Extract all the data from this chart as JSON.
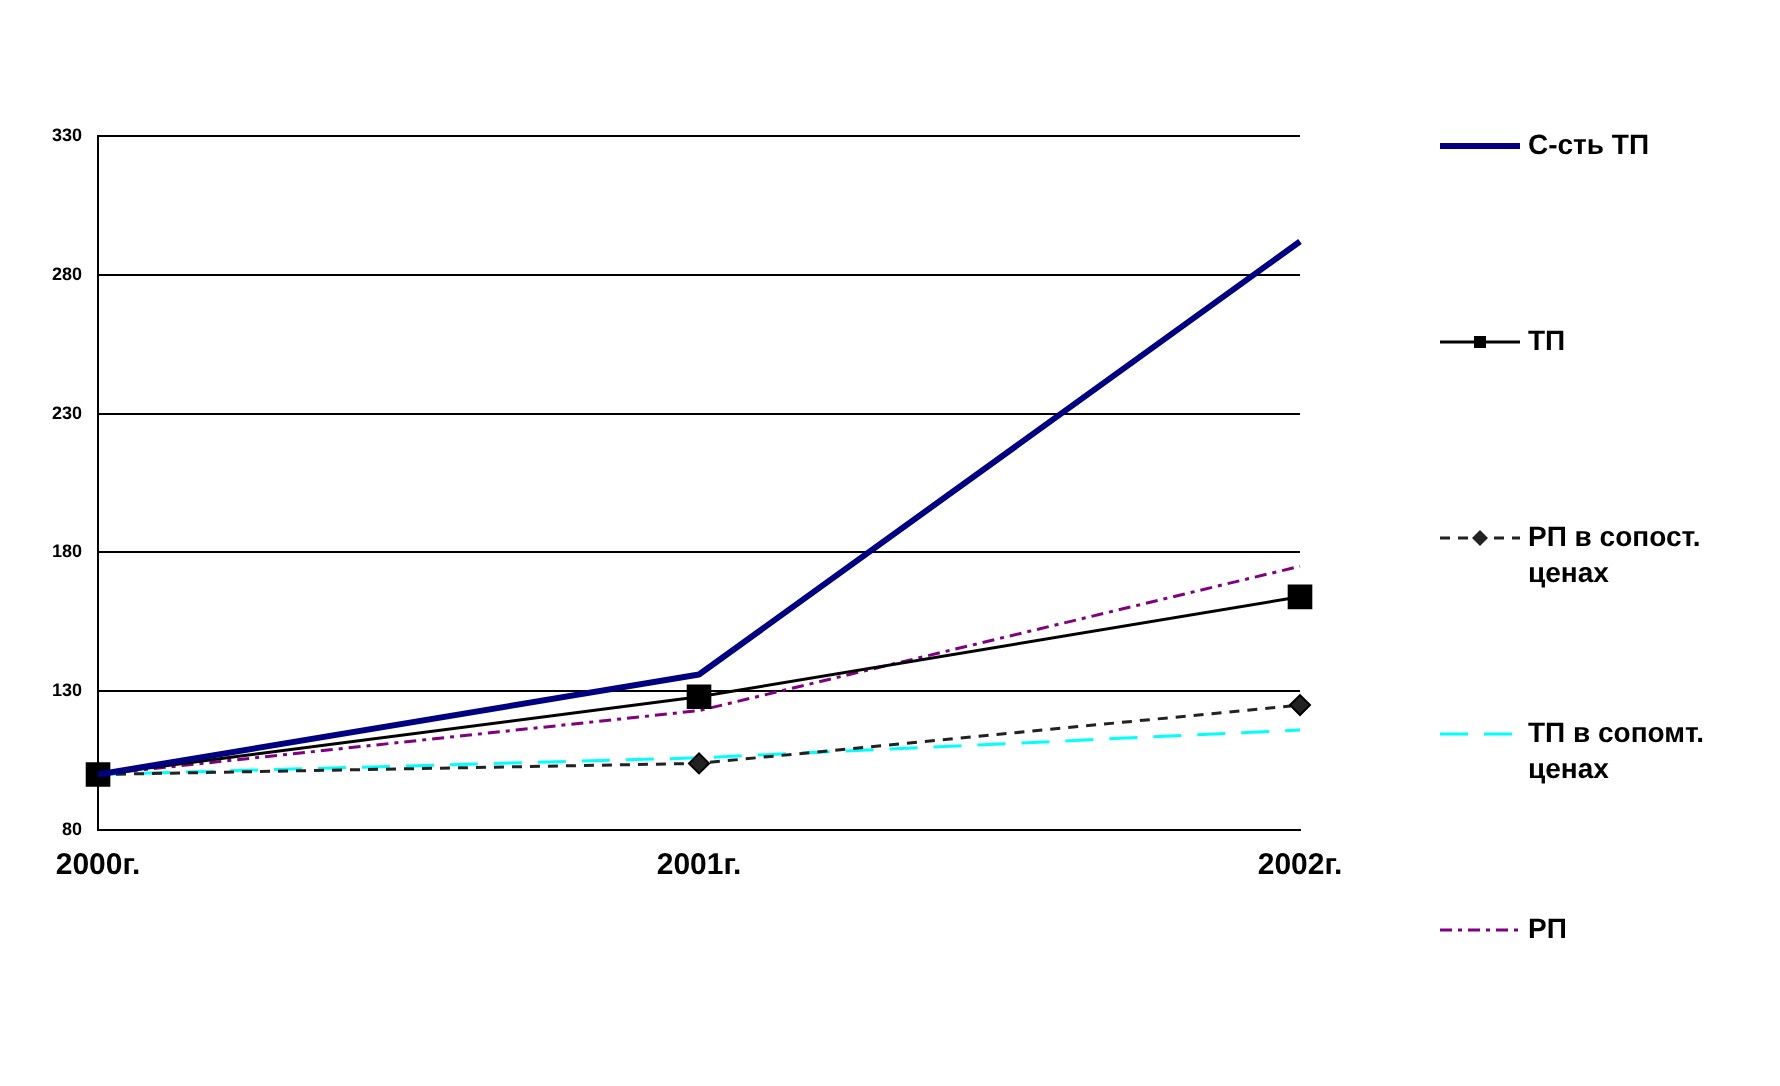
{
  "chart_data": {
    "type": "line",
    "categories": [
      "2000г.",
      "2001г.",
      "2002г."
    ],
    "series": [
      {
        "name": "С-сть ТП",
        "color": "#000080",
        "values": [
          100,
          136,
          292
        ],
        "marker": "none",
        "line_style": "solid"
      },
      {
        "name": "ТП",
        "color": "#000000",
        "values": [
          100,
          128,
          164
        ],
        "marker": "square",
        "line_style": "solid"
      },
      {
        "name": "РП в сопост. ценах",
        "color": "#222222",
        "values": [
          100,
          104,
          125
        ],
        "marker": "diamond",
        "line_style": "dashed"
      },
      {
        "name": "ТП в сопомт. ценах",
        "color": "#00ffff",
        "values": [
          100,
          106,
          116
        ],
        "marker": "none",
        "line_style": "dashed"
      },
      {
        "name": "РП",
        "color": "#800080",
        "values": [
          100,
          123,
          175
        ],
        "marker": "none",
        "line_style": "dotted"
      }
    ],
    "ylim": [
      80,
      330
    ],
    "yticks": [
      80,
      130,
      180,
      230,
      280,
      330
    ],
    "grid": "y",
    "legend": "right"
  }
}
